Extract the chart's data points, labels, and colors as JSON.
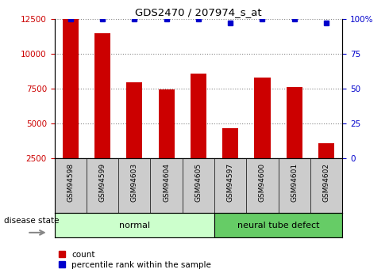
{
  "title": "GDS2470 / 207974_s_at",
  "samples": [
    "GSM94598",
    "GSM94599",
    "GSM94603",
    "GSM94604",
    "GSM94605",
    "GSM94597",
    "GSM94600",
    "GSM94601",
    "GSM94602"
  ],
  "counts": [
    12500,
    11500,
    7950,
    7450,
    8600,
    4650,
    8300,
    7600,
    3600
  ],
  "percentiles": [
    100,
    100,
    100,
    100,
    100,
    97,
    100,
    100,
    97
  ],
  "bar_color": "#cc0000",
  "dot_color": "#0000cc",
  "groups": [
    {
      "label": "normal",
      "indices": [
        0,
        4
      ],
      "color": "#ccffcc"
    },
    {
      "label": "neural tube defect",
      "indices": [
        5,
        8
      ],
      "color": "#66cc66"
    }
  ],
  "ylim_left": [
    2500,
    12500
  ],
  "ylim_right": [
    0,
    100
  ],
  "yticks_left": [
    2500,
    5000,
    7500,
    10000,
    12500
  ],
  "yticks_right": [
    0,
    25,
    50,
    75,
    100
  ],
  "ylabel_left_color": "#cc0000",
  "ylabel_right_color": "#0000cc",
  "grid_color": "#888888",
  "background_color": "#ffffff",
  "tick_area_color": "#cccccc",
  "legend_count_label": "count",
  "legend_percentile_label": "percentile rank within the sample",
  "disease_state_label": "disease state"
}
